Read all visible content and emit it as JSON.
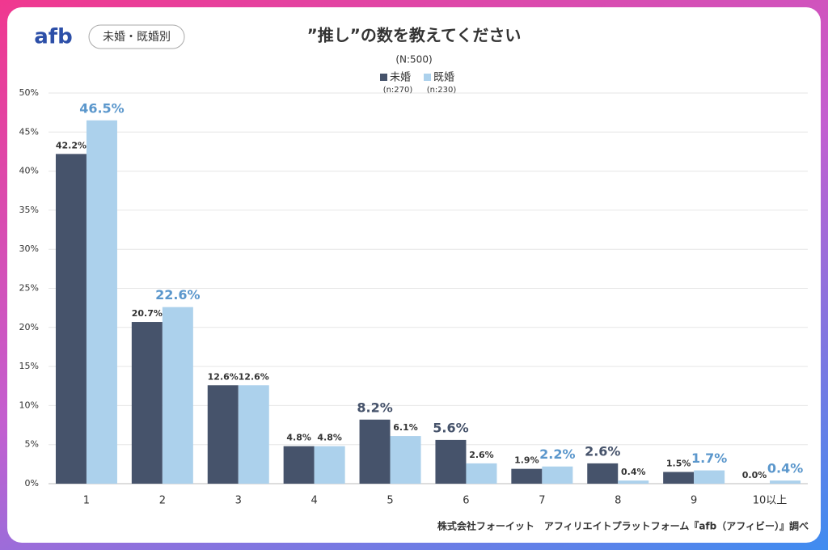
{
  "header": {
    "logo": "afb",
    "tag": "未婚・既婚別"
  },
  "chart_data": {
    "type": "bar",
    "title": "”推し”の数を教えてください",
    "subtitle": "(N:500)",
    "categories": [
      "1",
      "2",
      "3",
      "4",
      "5",
      "6",
      "7",
      "8",
      "9",
      "10以上"
    ],
    "series": [
      {
        "name": "未婚",
        "n_label": "(n:270)",
        "color": "#46536b",
        "label_color": "#46536b",
        "values": [
          42.2,
          20.7,
          12.6,
          4.8,
          8.2,
          5.6,
          1.9,
          2.6,
          1.5,
          0.0
        ],
        "value_labels": [
          "42.2%",
          "20.7%",
          "12.6%",
          "4.8%",
          "8.2%",
          "5.6%",
          "1.9%",
          "2.6%",
          "1.5%",
          "0.0%"
        ]
      },
      {
        "name": "既婚",
        "n_label": "(n:230)",
        "color": "#acd1ec",
        "label_color": "#5b97cc",
        "values": [
          46.5,
          22.6,
          12.6,
          4.8,
          6.1,
          2.6,
          2.2,
          0.4,
          1.7,
          0.4
        ],
        "value_labels": [
          "46.5%",
          "22.6%",
          "12.6%",
          "4.8%",
          "6.1%",
          "2.6%",
          "2.2%",
          "0.4%",
          "1.7%",
          "0.4%"
        ]
      }
    ],
    "ylim": [
      0,
      50
    ],
    "yticks": [
      {
        "value": 0,
        "label": "0%"
      },
      {
        "value": 5,
        "label": "5%"
      },
      {
        "value": 10,
        "label": "10%"
      },
      {
        "value": 15,
        "label": "15%"
      },
      {
        "value": 20,
        "label": "20%"
      },
      {
        "value": 25,
        "label": "25%"
      },
      {
        "value": 30,
        "label": "30%"
      },
      {
        "value": 35,
        "label": "35%"
      },
      {
        "value": 40,
        "label": "40%"
      },
      {
        "value": 45,
        "label": "45%"
      },
      {
        "value": 50,
        "label": "50%"
      }
    ],
    "grid": true
  },
  "footer": {
    "source": "株式会社フォーイット　アフィリエイトプラットフォーム『afb（アフィビー）』調べ"
  }
}
